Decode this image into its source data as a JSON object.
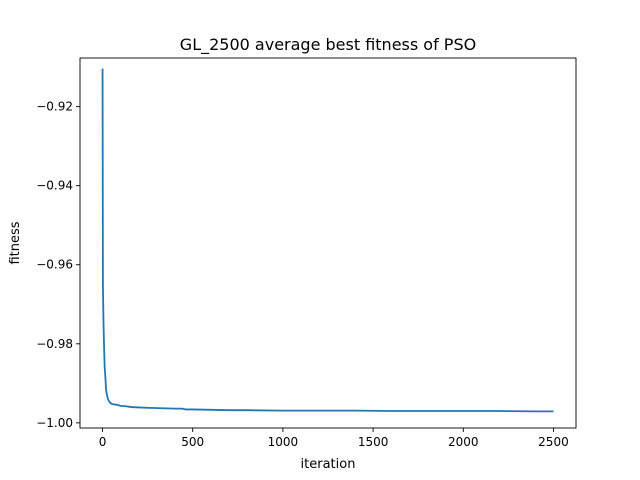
{
  "chart_data": {
    "type": "line",
    "title": "GL_2500 average best fitness of PSO",
    "xlabel": "iteration",
    "ylabel": "fitness",
    "xlim": [
      -125,
      2625
    ],
    "ylim": [
      -1.0013,
      -0.9077
    ],
    "x_ticks": [
      0,
      500,
      1000,
      1500,
      2000,
      2500
    ],
    "x_tick_labels": [
      "0",
      "500",
      "1000",
      "1500",
      "2000",
      "2500"
    ],
    "y_ticks": [
      -1.0,
      -0.98,
      -0.96,
      -0.94,
      -0.92
    ],
    "y_tick_labels": [
      "−1.00",
      "−0.98",
      "−0.96",
      "−0.94",
      "−0.92"
    ],
    "grid": false,
    "legend": "none",
    "colors": {
      "series": "#1f77b4"
    },
    "series": [
      {
        "x": [
          0,
          2,
          5,
          8,
          12,
          15,
          20,
          25,
          30,
          40,
          50,
          60,
          70,
          80,
          100,
          130,
          160,
          200,
          260,
          330,
          400,
          440,
          460,
          500,
          600,
          700,
          800,
          1000,
          1200,
          1400,
          1600,
          1800,
          2000,
          2200,
          2400,
          2500
        ],
        "y": [
          -0.9104,
          -0.965,
          -0.974,
          -0.98,
          -0.9862,
          -0.988,
          -0.9918,
          -0.993,
          -0.994,
          -0.9948,
          -0.9952,
          -0.9953,
          -0.9954,
          -0.9954,
          -0.9957,
          -0.9958,
          -0.996,
          -0.9961,
          -0.9962,
          -0.9963,
          -0.9964,
          -0.9964,
          -0.9966,
          -0.9966,
          -0.9967,
          -0.9968,
          -0.9968,
          -0.9969,
          -0.9969,
          -0.9969,
          -0.997,
          -0.997,
          -0.997,
          -0.997,
          -0.9971,
          -0.9971
        ]
      }
    ]
  }
}
